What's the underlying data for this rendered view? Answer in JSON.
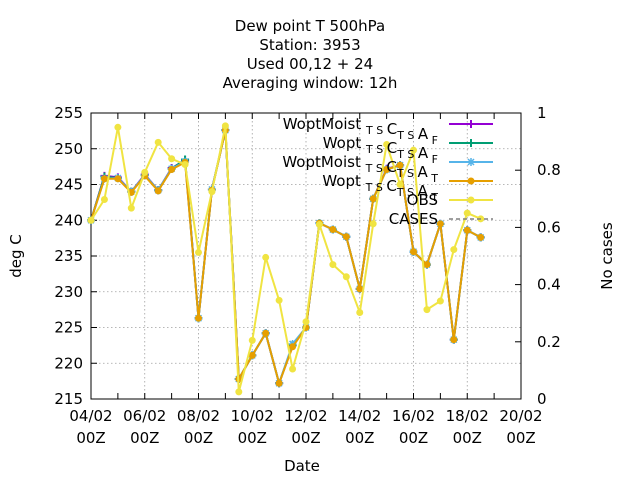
{
  "chart_data": {
    "type": "line",
    "title_lines": [
      "Dew point T 500hPa",
      "Station:     3953",
      "Used  00,12  + 24",
      "Averaging window: 12h"
    ],
    "xlabel": "Date",
    "ylabel": "deg C",
    "y2label": "No cases",
    "xlim": [
      "04/02 00Z",
      "20/02 00Z"
    ],
    "ylim": [
      215,
      255
    ],
    "y2lim": [
      0,
      1
    ],
    "yticks": [
      215,
      220,
      225,
      230,
      235,
      240,
      245,
      250,
      255
    ],
    "y2ticks": [
      0,
      0.2,
      0.4,
      0.6,
      0.8,
      1
    ],
    "xticks": [
      {
        "date": "04/02",
        "hour": "00Z"
      },
      {
        "date": "06/02",
        "hour": "00Z"
      },
      {
        "date": "08/02",
        "hour": "00Z"
      },
      {
        "date": "10/02",
        "hour": "00Z"
      },
      {
        "date": "12/02",
        "hour": "00Z"
      },
      {
        "date": "14/02",
        "hour": "00Z"
      },
      {
        "date": "16/02",
        "hour": "00Z"
      },
      {
        "date": "18/02",
        "hour": "00Z"
      },
      {
        "date": "20/02",
        "hour": "00Z"
      }
    ],
    "grid": true,
    "legend_position": "top-right",
    "x": [
      "04/02 00Z",
      "04/02 12Z",
      "05/02 00Z",
      "05/02 12Z",
      "06/02 00Z",
      "06/02 12Z",
      "07/02 00Z",
      "07/02 12Z",
      "08/02 00Z",
      "08/02 12Z",
      "09/02 00Z",
      "09/02 12Z",
      "10/02 00Z",
      "10/02 12Z",
      "11/02 00Z",
      "11/02 12Z",
      "12/02 00Z",
      "12/02 12Z",
      "13/02 00Z",
      "13/02 12Z",
      "14/02 00Z",
      "14/02 12Z",
      "15/02 00Z",
      "15/02 12Z",
      "16/02 00Z",
      "16/02 12Z",
      "17/02 00Z",
      "17/02 12Z",
      "18/02 00Z",
      "18/02 12Z"
    ],
    "series": [
      {
        "name": "WoptMoist TS CTS AF",
        "legend": {
          "main": "WoptMoist",
          "parts": [
            [
              "T",
              "S"
            ],
            [
              "C",
              ""
            ],
            [
              "T",
              "S"
            ],
            [
              "A",
              "F"
            ]
          ]
        },
        "color": "#9400d3",
        "marker": "plus",
        "values": [
          240,
          246.2,
          246,
          244,
          246.4,
          244.2,
          247.3,
          248.4,
          226.3,
          244.3,
          252.6,
          217.8,
          221.1,
          224.2,
          217.2,
          222.5,
          225,
          239.6,
          238.7,
          237.7,
          230.4,
          243,
          247.2,
          247.7,
          235.6,
          233.8,
          239.5,
          223.3,
          238.6,
          237.6
        ]
      },
      {
        "name": "Wopt TS CTS AF",
        "legend": {
          "main": "Wopt",
          "parts": [
            [
              "T",
              "S"
            ],
            [
              "C",
              ""
            ],
            [
              "T",
              "S"
            ],
            [
              "A",
              "F"
            ]
          ]
        },
        "color": "#009e73",
        "marker": "plus",
        "values": [
          240,
          246.1,
          245.9,
          244,
          246.3,
          244.2,
          247.2,
          248.5,
          226.3,
          244.3,
          252.6,
          217.8,
          221.1,
          224.2,
          217.2,
          222.5,
          225,
          239.6,
          238.7,
          237.7,
          230.4,
          243,
          247.1,
          247.7,
          235.6,
          233.8,
          239.5,
          223.3,
          238.6,
          237.6
        ]
      },
      {
        "name": "WoptMoist TS CTS AT",
        "legend": {
          "main": "WoptMoist",
          "parts": [
            [
              "T",
              "S"
            ],
            [
              "C",
              ""
            ],
            [
              "T",
              "S"
            ],
            [
              "A",
              "T"
            ]
          ]
        },
        "color": "#56b4e9",
        "marker": "star",
        "values": [
          240,
          245.8,
          245.9,
          244,
          246.3,
          244.2,
          247.2,
          248.2,
          226.3,
          244.3,
          252.6,
          217.8,
          221.1,
          224.2,
          217.2,
          222.7,
          225,
          239.6,
          238.7,
          237.7,
          230.4,
          243,
          247.1,
          247.7,
          235.6,
          233.8,
          239.5,
          223.3,
          238.6,
          237.6
        ]
      },
      {
        "name": "Wopt TS CTS AT",
        "legend": {
          "main": "Wopt",
          "parts": [
            [
              "T",
              "S"
            ],
            [
              "C",
              ""
            ],
            [
              "T",
              "S"
            ],
            [
              "A",
              "T"
            ]
          ]
        },
        "color": "#e69f00",
        "marker": "circle",
        "values": [
          240,
          245.8,
          245.8,
          243.9,
          246.2,
          244.1,
          247.1,
          248.1,
          226.3,
          244.2,
          252.6,
          217.8,
          221.1,
          224.2,
          217.2,
          222.3,
          225,
          239.6,
          238.7,
          237.7,
          230.4,
          243,
          247.1,
          247.7,
          235.6,
          233.8,
          239.5,
          223.3,
          238.6,
          237.6
        ]
      },
      {
        "name": "OBS",
        "legend": {
          "main": "OBS",
          "parts": []
        },
        "color": "#f0e442",
        "marker": "circle",
        "values": [
          240,
          242.9,
          253,
          241.7,
          246.7,
          250.9,
          248.6,
          247.8,
          235.5,
          244,
          253.2,
          216,
          223.2,
          234.8,
          228.8,
          219.2,
          225.8,
          239.4,
          233.8,
          232.1,
          227.1,
          239.5,
          250.6,
          245,
          249.8,
          227.5,
          228.7,
          235.9,
          241,
          240.2
        ]
      }
    ],
    "cases": {
      "name": "CASES",
      "style": "dashed",
      "color": "#808080",
      "values": []
    }
  }
}
